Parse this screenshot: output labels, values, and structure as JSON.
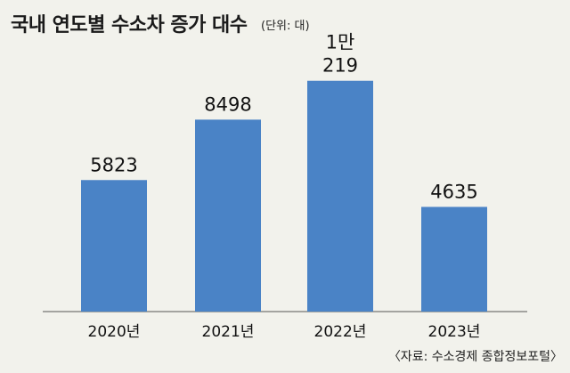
{
  "header": {
    "title": "국내 연도별 수소차 증가 대수",
    "unit": "(단위: 대)"
  },
  "footer": {
    "source": "〈자료: 수소경제 종합정보포털〉"
  },
  "colors": {
    "bar": "#4a83c6",
    "background": "#f2f2ec",
    "axis": "#555555"
  },
  "chart_data": {
    "type": "bar",
    "categories": [
      "2020년",
      "2021년",
      "2022년",
      "2023년"
    ],
    "values": [
      5823,
      8498,
      10219,
      4635
    ],
    "data_labels": [
      [
        "5823"
      ],
      [
        "8498"
      ],
      [
        "1만",
        "219"
      ],
      [
        "4635"
      ]
    ],
    "ylim": [
      0,
      10800
    ],
    "grid": false,
    "legend": "none"
  }
}
